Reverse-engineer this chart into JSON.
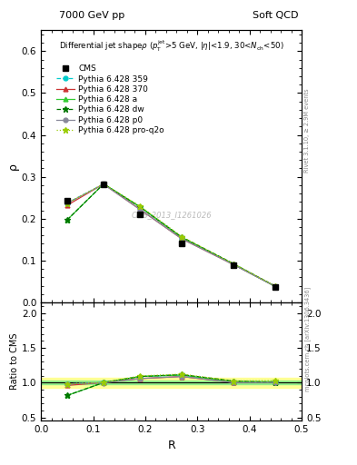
{
  "title_left": "7000 GeV pp",
  "title_right": "Soft QCD",
  "inner_title": "Differential jet shapeρ (pᵀₜ>5 GeV, |η|<1.9, 30<Nₙₕ<50)",
  "xlabel": "R",
  "ylabel_main": "ρ",
  "ylabel_ratio": "Ratio to CMS",
  "right_label_main": "Rivet 3.1.10, ≥ 2.9M events",
  "right_label_ratio": "mcplots.cern.ch [arXiv:1306.3436]",
  "watermark": "CMS_2013_I1261026",
  "x_values": [
    0.05,
    0.12,
    0.19,
    0.27,
    0.37,
    0.45
  ],
  "cms_y": [
    0.242,
    0.283,
    0.21,
    0.14,
    0.09,
    0.038
  ],
  "cms_yerr": [
    0.006,
    0.006,
    0.004,
    0.003,
    0.002,
    0.002
  ],
  "py359_y": [
    0.237,
    0.283,
    0.228,
    0.155,
    0.09,
    0.038
  ],
  "py370_y": [
    0.232,
    0.283,
    0.222,
    0.152,
    0.09,
    0.038
  ],
  "pya_y": [
    0.197,
    0.283,
    0.228,
    0.155,
    0.091,
    0.038
  ],
  "pydw_y": [
    0.197,
    0.283,
    0.228,
    0.156,
    0.092,
    0.038
  ],
  "pyp0_y": [
    0.237,
    0.282,
    0.222,
    0.152,
    0.09,
    0.038
  ],
  "pyproq2o_y": [
    0.237,
    0.283,
    0.23,
    0.157,
    0.092,
    0.039
  ],
  "ratio_py359": [
    0.979,
    1.0,
    1.086,
    1.107,
    1.0,
    1.0
  ],
  "ratio_py370": [
    0.959,
    1.0,
    1.057,
    1.086,
    1.0,
    1.0
  ],
  "ratio_pya": [
    0.814,
    1.0,
    1.086,
    1.107,
    1.011,
    1.0
  ],
  "ratio_pydw": [
    0.814,
    1.0,
    1.086,
    1.114,
    1.022,
    1.0
  ],
  "ratio_pyp0": [
    0.979,
    0.996,
    1.057,
    1.086,
    1.0,
    1.0
  ],
  "ratio_pyproq2o": [
    0.979,
    1.0,
    1.095,
    1.121,
    1.022,
    1.026
  ],
  "color_359": "#00cccc",
  "color_370": "#cc3333",
  "color_a": "#33cc33",
  "color_dw": "#007700",
  "color_p0": "#888899",
  "color_proq2o": "#99cc00",
  "ylim_main": [
    0.0,
    0.65
  ],
  "ylim_ratio": [
    0.45,
    2.15
  ],
  "yticks_main": [
    0.0,
    0.1,
    0.2,
    0.3,
    0.4,
    0.5,
    0.6
  ],
  "yticks_ratio": [
    0.5,
    1.0,
    1.5,
    2.0
  ],
  "band_yellow": [
    0.93,
    1.07
  ],
  "band_green": [
    0.97,
    1.03
  ]
}
